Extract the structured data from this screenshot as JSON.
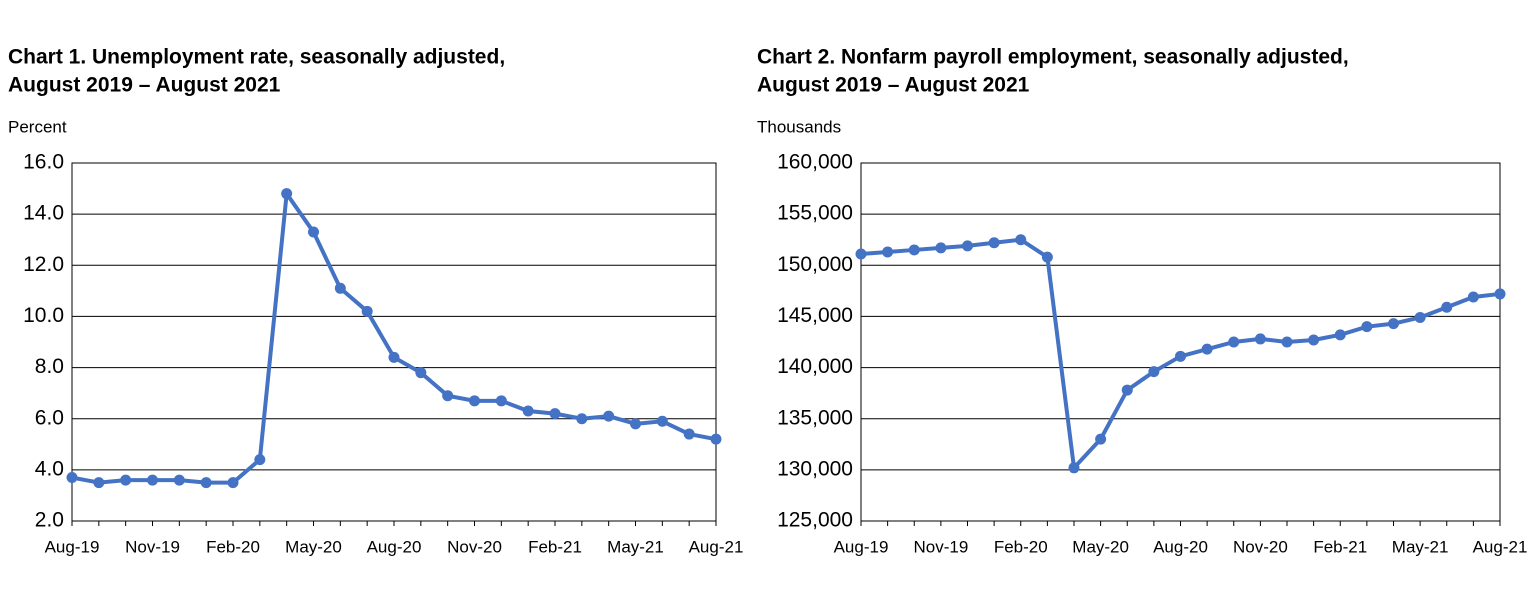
{
  "chart_data": [
    {
      "type": "line",
      "title": "Chart 1. Unemployment rate, seasonally adjusted,",
      "subtitle": "August 2019 – August 2021",
      "y_label": "Percent",
      "categories": [
        "Aug-19",
        null,
        null,
        "Nov-19",
        null,
        null,
        "Feb-20",
        null,
        null,
        "May-20",
        null,
        null,
        "Aug-20",
        null,
        null,
        "Nov-20",
        null,
        null,
        "Feb-21",
        null,
        null,
        "May-21",
        null,
        null,
        "Aug-21"
      ],
      "values": [
        3.7,
        3.5,
        3.6,
        3.6,
        3.6,
        3.5,
        3.5,
        4.4,
        14.8,
        13.3,
        11.1,
        10.2,
        8.4,
        7.8,
        6.9,
        6.7,
        6.7,
        6.3,
        6.2,
        6.0,
        6.1,
        5.8,
        5.9,
        5.4,
        5.2
      ],
      "color": "#4472c4",
      "grid": true,
      "ylim": [
        2,
        16
      ],
      "yticks": [
        {
          "value": 2,
          "label": "2.0"
        },
        {
          "value": 4,
          "label": "4.0"
        },
        {
          "value": 6,
          "label": "6.0"
        },
        {
          "value": 8,
          "label": "8.0"
        },
        {
          "value": 10,
          "label": "10.0"
        },
        {
          "value": 12,
          "label": "12.0"
        },
        {
          "value": 14,
          "label": "14.0"
        },
        {
          "value": 16,
          "label": "16.0"
        }
      ]
    },
    {
      "type": "line",
      "title": "Chart 2. Nonfarm payroll employment, seasonally adjusted,",
      "subtitle": "August 2019 – August 2021",
      "y_label": "Thousands",
      "categories": [
        "Aug-19",
        null,
        null,
        "Nov-19",
        null,
        null,
        "Feb-20",
        null,
        null,
        "May-20",
        null,
        null,
        "Aug-20",
        null,
        null,
        "Nov-20",
        null,
        null,
        "Feb-21",
        null,
        null,
        "May-21",
        null,
        null,
        "Aug-21"
      ],
      "values": [
        151100,
        151300,
        151500,
        151700,
        151900,
        152200,
        152500,
        150800,
        130200,
        133000,
        137800,
        139600,
        141100,
        141800,
        142500,
        142800,
        142500,
        142700,
        143200,
        144000,
        144300,
        144900,
        145900,
        146900,
        147200
      ],
      "color": "#4472c4",
      "grid": true,
      "ylim": [
        125000,
        160000
      ],
      "yticks": [
        {
          "value": 125000,
          "label": "125,000"
        },
        {
          "value": 130000,
          "label": "130,000"
        },
        {
          "value": 135000,
          "label": "135,000"
        },
        {
          "value": 140000,
          "label": "140,000"
        },
        {
          "value": 145000,
          "label": "145,000"
        },
        {
          "value": 150000,
          "label": "150,000"
        },
        {
          "value": 155000,
          "label": "155,000"
        },
        {
          "value": 160000,
          "label": "160,000"
        }
      ]
    }
  ]
}
